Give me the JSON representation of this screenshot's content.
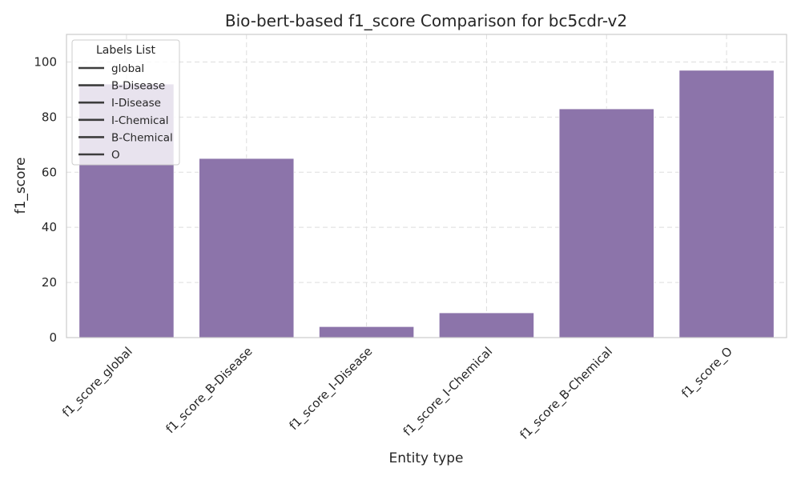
{
  "chart_data": {
    "type": "bar",
    "title": "Bio-bert-based  f1_score Comparison for bc5cdr-v2",
    "xlabel": "Entity type",
    "ylabel": "f1_score",
    "categories": [
      "f1_score_global",
      "f1_score_B-Disease",
      "f1_score_I-Disease",
      "f1_score_I-Chemical",
      "f1_score_B-Chemical",
      "f1_score_O"
    ],
    "values": [
      92,
      65,
      4,
      9,
      83,
      97
    ],
    "ylim": [
      0,
      110
    ],
    "yticks": [
      0,
      20,
      40,
      60,
      80,
      100
    ],
    "grid": true,
    "bar_color": "#8c74aa",
    "legend": {
      "title": "Labels List",
      "placement": "top-left",
      "entries": [
        "global",
        "B-Disease",
        "I-Disease",
        "I-Chemical",
        "B-Chemical",
        "O"
      ]
    }
  }
}
